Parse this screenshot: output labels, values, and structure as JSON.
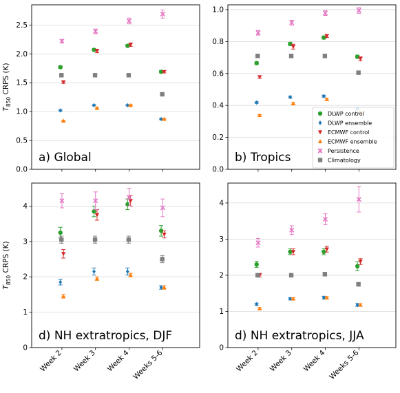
{
  "ylabel_main": "T",
  "ylabel_sub": "850",
  "ylabel_rest": " CRPS (K)",
  "legend_entries": [
    "DLWP control",
    "DLWP ensemble",
    "ECMWF control",
    "ECMWF ensemble",
    "Persistence",
    "Climatology"
  ],
  "colors": {
    "DLWP control": "#2ca02c",
    "DLWP ensemble": "#1f77b4",
    "ECMWF control": "#d62728",
    "ECMWF ensemble": "#ff7f0e",
    "Persistence": "#e377c2",
    "Climatology": "#7f7f7f"
  },
  "markers": {
    "DLWP control": "circle",
    "DLWP ensemble": "diamond",
    "ECMWF control": "triangle-down",
    "ECMWF ensemble": "triangle-up",
    "Persistence": "x",
    "Climatology": "square"
  },
  "chart_data": [
    {
      "type": "scatter",
      "title": "a) Global",
      "categories": [
        "Week 2",
        "Week 3",
        "Week 4",
        "Weeks 5-6"
      ],
      "ylim": [
        0,
        2.85
      ],
      "yticks": [
        0.0,
        0.5,
        1.0,
        1.5,
        2.0,
        2.5
      ],
      "ytick_labels": [
        "0.0",
        "0.5",
        "1.0",
        "1.5",
        "2.0",
        "2.5"
      ],
      "grid": true,
      "legend": "",
      "series": [
        {
          "name": "DLWP control",
          "values": [
            1.77,
            2.07,
            2.14,
            1.69
          ],
          "err": [
            0.02,
            0.02,
            0.02,
            0.02
          ]
        },
        {
          "name": "DLWP ensemble",
          "values": [
            1.02,
            1.11,
            1.11,
            0.87
          ],
          "err": [
            0.01,
            0.01,
            0.01,
            0.01
          ]
        },
        {
          "name": "ECMWF control",
          "values": [
            1.51,
            2.05,
            2.16,
            1.69
          ],
          "err": [
            0.02,
            0.03,
            0.03,
            0.02
          ]
        },
        {
          "name": "ECMWF ensemble",
          "values": [
            0.84,
            1.06,
            1.11,
            0.87
          ],
          "err": [
            0.01,
            0.01,
            0.01,
            0.01
          ]
        },
        {
          "name": "Persistence",
          "values": [
            2.22,
            2.39,
            2.57,
            2.69
          ],
          "err": [
            0.03,
            0.04,
            0.05,
            0.07
          ]
        },
        {
          "name": "Climatology",
          "values": [
            1.63,
            1.63,
            1.63,
            1.3
          ],
          "err": [
            0.01,
            0.01,
            0.01,
            0.01
          ]
        }
      ]
    },
    {
      "type": "scatter",
      "title": "b) Tropics",
      "categories": [
        "Week 2",
        "Week 3",
        "Week 4",
        "Weeks 5-6"
      ],
      "ylim": [
        0,
        1.03
      ],
      "yticks": [
        0.0,
        0.2,
        0.4,
        0.6,
        0.8,
        1.0
      ],
      "ytick_labels": [
        "0.0",
        "0.2",
        "0.4",
        "0.6",
        "0.8",
        "1.0"
      ],
      "grid": true,
      "legend": "lower-right",
      "series": [
        {
          "name": "DLWP control",
          "values": [
            0.665,
            0.785,
            0.825,
            0.705
          ],
          "err": [
            0.008,
            0.01,
            0.01,
            0.01
          ]
        },
        {
          "name": "DLWP ensemble",
          "values": [
            0.418,
            0.452,
            0.458,
            0.378
          ],
          "err": [
            0.005,
            0.006,
            0.006,
            0.006
          ]
        },
        {
          "name": "ECMWF control",
          "values": [
            0.578,
            0.768,
            0.835,
            0.692
          ],
          "err": [
            0.008,
            0.015,
            0.01,
            0.012
          ]
        },
        {
          "name": "ECMWF ensemble",
          "values": [
            0.338,
            0.412,
            0.438,
            0.356
          ],
          "err": [
            0.005,
            0.006,
            0.006,
            0.008
          ]
        },
        {
          "name": "Persistence",
          "values": [
            0.855,
            0.918,
            0.978,
            0.995
          ],
          "err": [
            0.015,
            0.015,
            0.015,
            0.018
          ]
        },
        {
          "name": "Climatology",
          "values": [
            0.71,
            0.71,
            0.71,
            0.605
          ],
          "err": [
            0.01,
            0.01,
            0.01,
            0.01
          ]
        }
      ]
    },
    {
      "type": "scatter",
      "title": "d) NH extratropics, DJF",
      "categories": [
        "Week 2",
        "Week 3",
        "Week 4",
        "Weeks 5-6"
      ],
      "ylim": [
        0,
        4.65
      ],
      "yticks": [
        0,
        1,
        2,
        3,
        4
      ],
      "ytick_labels": [
        "0",
        "1",
        "2",
        "3",
        "4"
      ],
      "grid": true,
      "legend": "",
      "series": [
        {
          "name": "DLWP control",
          "values": [
            3.25,
            3.85,
            4.05,
            3.3
          ],
          "err": [
            0.15,
            0.15,
            0.15,
            0.15
          ]
        },
        {
          "name": "DLWP ensemble",
          "values": [
            1.85,
            2.15,
            2.15,
            1.7
          ],
          "err": [
            0.08,
            0.1,
            0.1,
            0.05
          ]
        },
        {
          "name": "ECMWF control",
          "values": [
            2.65,
            3.75,
            4.15,
            3.2
          ],
          "err": [
            0.12,
            0.15,
            0.15,
            0.1
          ]
        },
        {
          "name": "ECMWF ensemble",
          "values": [
            1.45,
            1.95,
            2.05,
            1.7
          ],
          "err": [
            0.05,
            0.05,
            0.05,
            0.05
          ]
        },
        {
          "name": "Persistence",
          "values": [
            4.15,
            4.15,
            4.25,
            3.95
          ],
          "err": [
            0.2,
            0.25,
            0.25,
            0.25
          ]
        },
        {
          "name": "Climatology",
          "values": [
            3.05,
            3.05,
            3.05,
            2.5
          ],
          "err": [
            0.1,
            0.1,
            0.1,
            0.1
          ]
        }
      ]
    },
    {
      "type": "scatter",
      "title": "d) NH extratropics, JJA",
      "categories": [
        "Week 2",
        "Week 3",
        "Week 4",
        "Weeks 5-6"
      ],
      "ylim": [
        0,
        4.55
      ],
      "yticks": [
        0,
        1,
        2,
        3,
        4
      ],
      "ytick_labels": [
        "0",
        "1",
        "2",
        "3",
        "4"
      ],
      "grid": true,
      "legend": "",
      "series": [
        {
          "name": "DLWP control",
          "values": [
            2.3,
            2.65,
            2.65,
            2.25
          ],
          "err": [
            0.08,
            0.08,
            0.08,
            0.12
          ]
        },
        {
          "name": "DLWP ensemble",
          "values": [
            1.2,
            1.35,
            1.38,
            1.18
          ],
          "err": [
            0.03,
            0.03,
            0.04,
            0.04
          ]
        },
        {
          "name": "ECMWF control",
          "values": [
            2.0,
            2.65,
            2.72,
            2.38
          ],
          "err": [
            0.05,
            0.08,
            0.08,
            0.08
          ]
        },
        {
          "name": "ECMWF ensemble",
          "values": [
            1.08,
            1.35,
            1.38,
            1.18
          ],
          "err": [
            0.03,
            0.03,
            0.03,
            0.03
          ]
        },
        {
          "name": "Persistence",
          "values": [
            2.9,
            3.25,
            3.55,
            4.1
          ],
          "err": [
            0.12,
            0.12,
            0.15,
            0.35
          ]
        },
        {
          "name": "Climatology",
          "values": [
            2.0,
            2.0,
            2.03,
            1.75
          ],
          "err": [
            0.05,
            0.05,
            0.05,
            0.05
          ]
        }
      ]
    }
  ]
}
